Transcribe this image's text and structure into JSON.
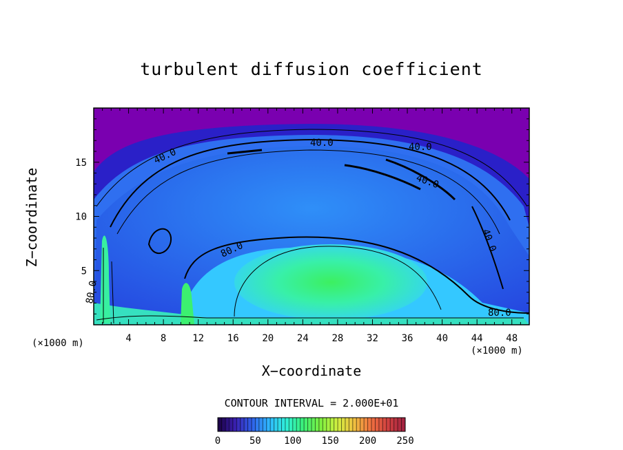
{
  "chart_data": {
    "type": "heatmap",
    "title": "turbulent diffusion coefficient",
    "xlabel": "X−coordinate",
    "ylabel": "Z−coordinate",
    "x_unit_left": "(×1000 m)",
    "x_unit_right": "(×1000 m)",
    "xlim": [
      0,
      50
    ],
    "ylim": [
      0,
      20
    ],
    "x_ticks": [
      "4",
      "8",
      "12",
      "16",
      "20",
      "24",
      "28",
      "32",
      "36",
      "40",
      "44",
      "48"
    ],
    "y_ticks": [
      "5",
      "10",
      "15"
    ],
    "contour_interval": "CONTOUR INTERVAL = 2.000E+01",
    "contour_labels": [
      "40.0",
      "40.0",
      "40.0",
      "40.0",
      "40.0",
      "80.0",
      "80.0",
      "80.0"
    ],
    "colorbar": {
      "min": 0,
      "max": 250,
      "tick_labels": [
        "0",
        "50",
        "100",
        "150",
        "200",
        "250"
      ],
      "colors": [
        "#1a0040",
        "#3a1fb0",
        "#2f5fe8",
        "#2fb7ff",
        "#2ff0d8",
        "#3af07a",
        "#7bf040",
        "#d0f040",
        "#f0c040",
        "#f07040",
        "#d04040",
        "#a02040"
      ]
    },
    "field_colors": [
      "#7a00b0",
      "#2a1fd0",
      "#2f6ff0",
      "#34c8ff",
      "#38f0e0",
      "#3cf0a0",
      "#42e860"
    ],
    "field_peak_value": 140,
    "field_peak_location": [
      26,
      3.5
    ]
  }
}
